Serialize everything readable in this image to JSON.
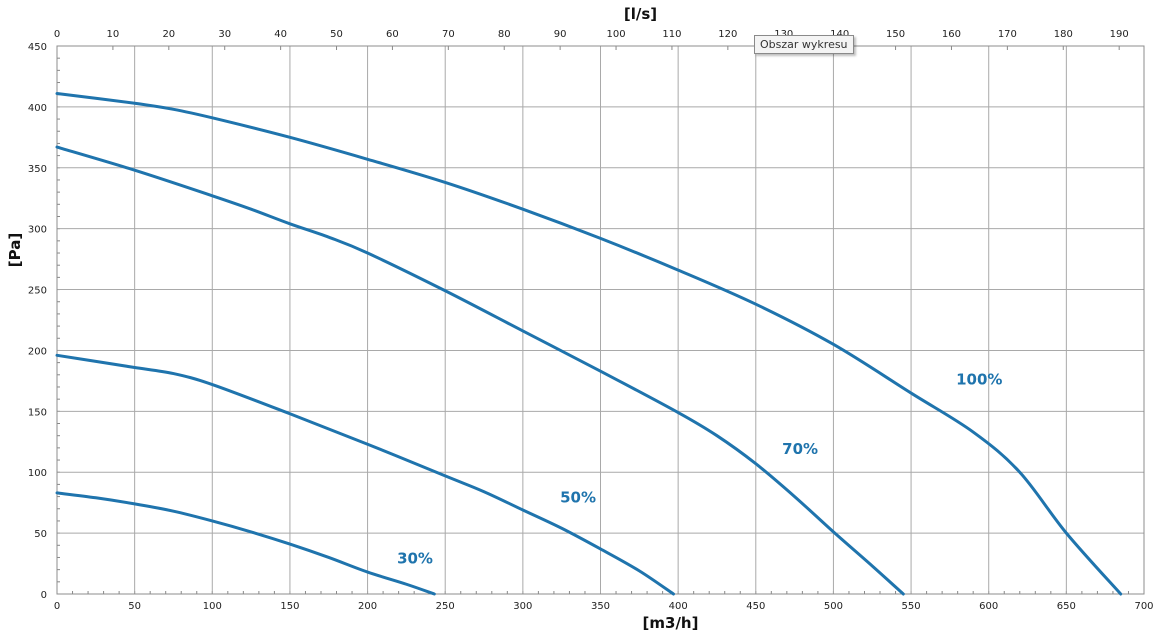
{
  "chart_data": {
    "type": "line",
    "xlabel": "[m3/h]",
    "x2label": "[l/s]",
    "ylabel": "[Pa]",
    "xlim": [
      0,
      700
    ],
    "x2lim": [
      0,
      194.44
    ],
    "ylim": [
      0,
      450
    ],
    "x_ticks": [
      0,
      50,
      100,
      150,
      200,
      250,
      300,
      350,
      400,
      450,
      500,
      550,
      600,
      650,
      700
    ],
    "x2_ticks": [
      0,
      10,
      20,
      30,
      40,
      50,
      60,
      70,
      80,
      90,
      100,
      110,
      120,
      130,
      140,
      150,
      160,
      170,
      180,
      190
    ],
    "y_ticks": [
      0,
      50,
      100,
      150,
      200,
      250,
      300,
      350,
      400,
      450
    ],
    "grid": true,
    "line_color": "#1f74ad",
    "series": [
      {
        "name": "100%",
        "x": [
          0,
          50,
          75,
          100,
          150,
          200,
          250,
          300,
          350,
          400,
          450,
          500,
          550,
          590,
          620,
          650,
          685
        ],
        "y": [
          411,
          403,
          398,
          391,
          375,
          357,
          338,
          316,
          292,
          266,
          238,
          205,
          165,
          133,
          100,
          50,
          0
        ]
      },
      {
        "name": "70%",
        "x": [
          0,
          50,
          100,
          125,
          150,
          175,
          200,
          250,
          300,
          350,
          400,
          425,
          450,
          475,
          500,
          525,
          545
        ],
        "y": [
          367,
          348,
          327,
          316,
          304,
          293,
          280,
          249,
          216,
          183,
          149,
          130,
          107,
          80,
          51,
          23,
          0
        ]
      },
      {
        "name": "50%",
        "x": [
          0,
          25,
          50,
          75,
          100,
          150,
          200,
          250,
          275,
          300,
          325,
          350,
          375,
          397
        ],
        "y": [
          196,
          191,
          186,
          181,
          172,
          148,
          123,
          97,
          84,
          69,
          54,
          37,
          19,
          0
        ]
      },
      {
        "name": "30%",
        "x": [
          0,
          25,
          50,
          75,
          100,
          125,
          150,
          175,
          200,
          225,
          243
        ],
        "y": [
          83,
          79,
          74,
          68,
          60,
          51,
          41,
          30,
          18,
          8,
          0
        ]
      }
    ],
    "curve_labels": [
      {
        "text": "100%",
        "x": 579,
        "y": 172
      },
      {
        "text": "70%",
        "x": 467,
        "y": 115
      },
      {
        "text": "50%",
        "x": 324,
        "y": 75
      },
      {
        "text": "30%",
        "x": 219,
        "y": 25
      }
    ]
  },
  "tooltip": {
    "text": "Obszar wykresu"
  }
}
